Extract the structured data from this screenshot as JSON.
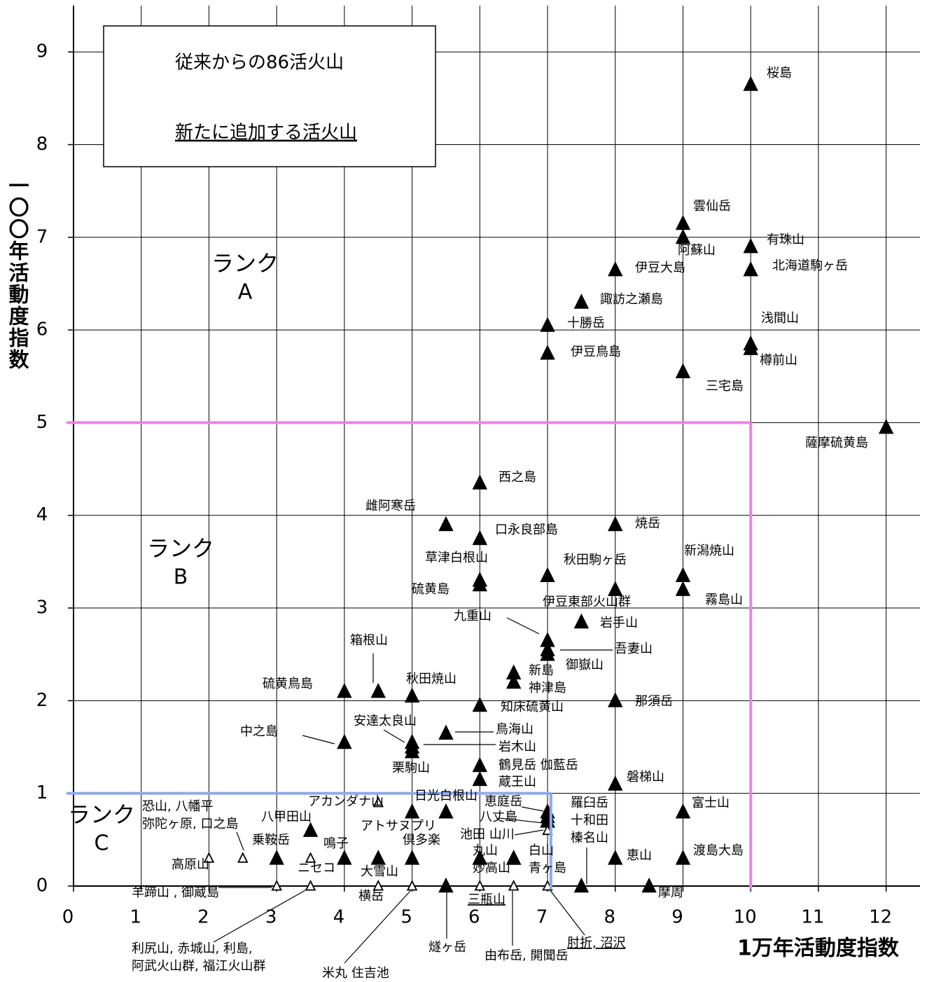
{
  "chart_data": {
    "type": "scatter",
    "xlabel": "1万年活動度指数",
    "ylabel": "一〇〇年活動度指数",
    "xlim": [
      0,
      12.5
    ],
    "ylim": [
      0,
      9.5
    ],
    "xticks": [
      0,
      1,
      2,
      3,
      4,
      5,
      6,
      7,
      8,
      9,
      10,
      11,
      12
    ],
    "yticks": [
      0,
      1,
      2,
      3,
      4,
      5,
      6,
      7,
      8,
      9
    ],
    "grid": true,
    "legend": "upper left",
    "regions": [
      {
        "name": "ランク",
        "rank": "A",
        "x": 10,
        "y": 5,
        "color": "#f080e8"
      },
      {
        "name": "ランク",
        "rank": "B"
      },
      {
        "name": "ランク",
        "rank": "C",
        "x": 7.05,
        "y": 1,
        "color": "#8fa8ee"
      }
    ],
    "series": [
      {
        "name": "従来からの86活火山",
        "marker": "filled",
        "color": "#000000",
        "x": [
          10,
          9,
          9,
          10,
          10,
          8,
          7.5,
          7,
          10,
          10,
          7,
          9,
          12,
          6,
          5.5,
          6,
          8,
          6,
          6,
          7,
          9,
          9,
          8,
          7.5,
          7,
          7,
          7,
          6.5,
          6.5,
          4.5,
          4,
          5,
          6,
          8,
          4,
          5,
          5.5,
          5,
          5,
          6,
          6,
          8,
          5,
          5.5,
          7,
          7,
          7,
          7,
          7.5,
          9,
          3.5,
          3,
          4,
          4.5,
          5,
          6,
          6,
          6.5,
          6.5,
          8,
          9,
          8.5,
          5.5
        ],
        "values": [
          8.65,
          7.15,
          7.0,
          6.9,
          6.65,
          6.65,
          6.3,
          6.05,
          5.85,
          5.8,
          5.75,
          5.55,
          4.95,
          4.35,
          3.9,
          3.75,
          3.9,
          3.3,
          3.25,
          3.35,
          3.35,
          3.2,
          3.2,
          2.85,
          2.65,
          2.55,
          2.5,
          2.3,
          2.2,
          2.1,
          2.1,
          2.05,
          1.95,
          2.0,
          1.55,
          1.55,
          1.65,
          1.5,
          1.45,
          1.3,
          1.15,
          1.1,
          0.8,
          0.8,
          0.8,
          0.7,
          0.75,
          0.7,
          0,
          0.8,
          0.6,
          0.3,
          0.3,
          0.3,
          0.3,
          0.3,
          0.3,
          0.3,
          0.3,
          0.3,
          0.3,
          0,
          0
        ],
        "labels": [
          "桜島",
          "雲仙岳",
          "阿蘇山",
          "有珠山",
          "北海道駒ヶ岳",
          "伊豆大島",
          "諏訪之瀬島",
          "十勝岳",
          "浅間山",
          "樽前山",
          "伊豆鳥島",
          "三宅島",
          "薩摩硫黄島",
          "西之島",
          "雌阿寒岳",
          "口永良部島",
          "焼岳",
          "草津白根山",
          "硫黄島",
          "秋田駒ヶ岳",
          "新潟焼山",
          "霧島山",
          "伊豆東部火山群",
          "岩手山",
          "九重山",
          "吾妻山",
          "御嶽山",
          "新島",
          "神津島",
          "箱根山",
          "硫黄鳥島",
          "秋田焼山",
          "知床硫黄山",
          "那須岳",
          "中之島",
          "安達太良山",
          "鳥海山",
          "岩木山",
          "栗駒山",
          "鶴見岳 伽藍岳",
          "蔵王山",
          "磐梯山",
          "日光白根山",
          "アトサヌプリ",
          "恵庭岳",
          "八丈島",
          "羅臼岳",
          "十和田",
          "榛名山",
          "富士山",
          "八甲田山",
          "乗鞍岳",
          "鳴子",
          "大雪山",
          "倶多楽",
          "丸山",
          "妙高山",
          "白山",
          "青ヶ島",
          "恵山",
          "渡島大島",
          "摩周",
          "燧ヶ岳"
        ]
      },
      {
        "name": "新たに追加する活火山",
        "marker": "open",
        "color": "#000000",
        "x": [
          2.5,
          2,
          3.5,
          4.5,
          3,
          4.5,
          5,
          6,
          7,
          7,
          3.5,
          6.5
        ],
        "values": [
          0.3,
          0.3,
          0.3,
          0.9,
          0,
          0,
          0,
          0,
          0,
          0.6,
          0,
          0
        ],
        "labels": [
          [
            "恐山, 八幡平",
            "弥陀ヶ原, 口之島"
          ],
          "高原山",
          "ニセコ",
          "アカンダナ山",
          "羊蹄山 , 御蔵島",
          "横岳",
          "米丸 住吉池",
          "三瓶山",
          "肘折, 沼沢",
          "池田 山川",
          [
            "利尻山, 赤城山, 利島,",
            "阿武火山群, 福江火山群"
          ],
          "由布岳, 開聞岳"
        ]
      }
    ]
  }
}
